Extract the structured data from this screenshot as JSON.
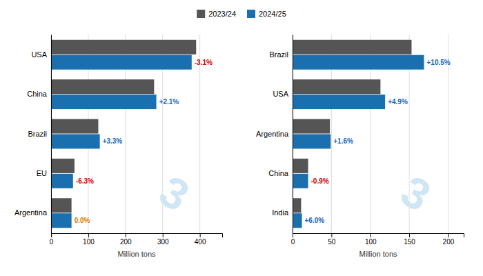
{
  "chart_data": [
    {
      "type": "bar",
      "orientation": "horizontal",
      "categories": [
        "USA",
        "China",
        "Brazil",
        "EU",
        "Argentina"
      ],
      "series": [
        {
          "name": "2023/24",
          "color": "#555555",
          "values": [
            390,
            277,
            127,
            63,
            55
          ]
        },
        {
          "name": "2024/25",
          "color": "#1a6faf",
          "values": [
            378,
            283,
            131,
            59,
            55
          ]
        }
      ],
      "xlabel": "Million tons",
      "xlim": [
        0,
        460
      ],
      "xticks": [
        0,
        100,
        200,
        300,
        400
      ],
      "grid": true,
      "legend": "top",
      "annotations": [
        {
          "text": "3",
          "color": "#d0e6f5"
        },
        {
          "text": "-3.1%",
          "color": "#cc0000",
          "series": 1,
          "index": 0
        },
        {
          "text": "+2.1%",
          "color": "#1565c0",
          "series": 1,
          "index": 1
        },
        {
          "text": "+3.3%",
          "color": "#1565c0",
          "series": 1,
          "index": 2
        },
        {
          "text": "-6.3%",
          "color": "#cc0000",
          "series": 1,
          "index": 3
        },
        {
          "text": "0.0%",
          "color": "#e07800",
          "series": 1,
          "index": 4
        }
      ]
    },
    {
      "type": "bar",
      "orientation": "horizontal",
      "categories": [
        "Brazil",
        "USA",
        "Argentina",
        "China",
        "India"
      ],
      "series": [
        {
          "name": "2023/24",
          "color": "#555555",
          "values": [
            153,
            113,
            48,
            20,
            11
          ]
        },
        {
          "name": "2024/25",
          "color": "#1a6faf",
          "values": [
            169,
            119,
            49,
            20,
            12
          ]
        }
      ],
      "xlabel": "Million tons",
      "xlim": [
        0,
        220
      ],
      "xticks": [
        0,
        50,
        100,
        150,
        200
      ],
      "grid": true,
      "annotations": [
        {
          "text": "3",
          "color": "#d0e6f5"
        },
        {
          "text": "+10.5%",
          "color": "#1565c0",
          "series": 1,
          "index": 0
        },
        {
          "text": "+4.9%",
          "color": "#1565c0",
          "series": 1,
          "index": 1
        },
        {
          "text": "+1.6%",
          "color": "#1565c0",
          "series": 1,
          "index": 2
        },
        {
          "text": "-0.9%",
          "color": "#cc0000",
          "series": 1,
          "index": 3
        },
        {
          "text": "+6.0%",
          "color": "#1565c0",
          "series": 1,
          "index": 4
        }
      ]
    }
  ]
}
